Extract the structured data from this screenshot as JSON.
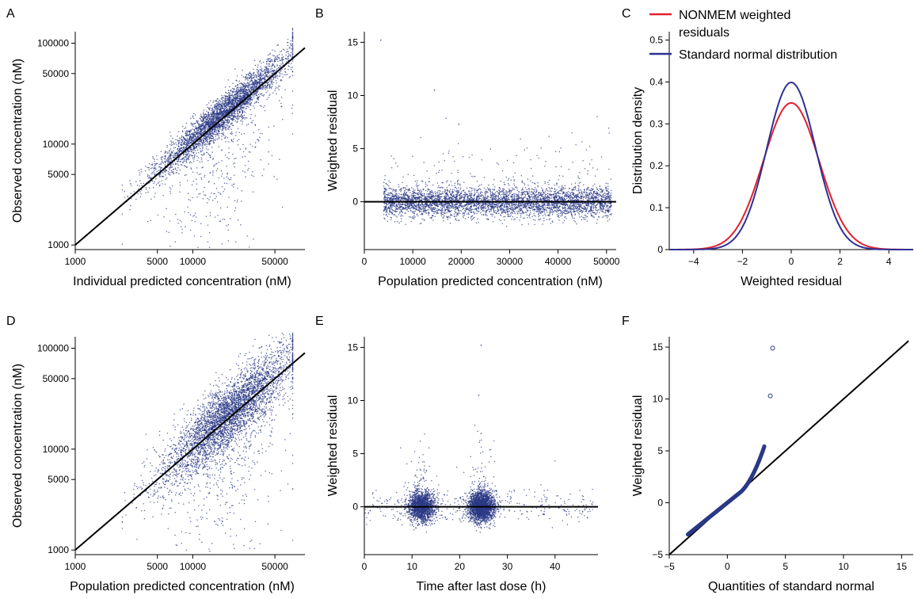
{
  "colors": {
    "points": "#2b3a86",
    "nonmem": "#e0202e",
    "normal": "#2e3192",
    "ref_line": "#000000"
  },
  "chart_data": [
    {
      "panel": "A",
      "type": "scatter",
      "xscale": "log",
      "yscale": "log",
      "xlabel": "Individual predicted concentration (nM)",
      "ylabel": "Observed concentration (nM)",
      "xlim": [
        1000,
        90000
      ],
      "ylim": [
        900,
        130000
      ],
      "xticks": [
        1000,
        5000,
        10000,
        50000
      ],
      "xtick_labels": [
        "1000",
        "5000",
        "10000",
        "50000"
      ],
      "yticks": [
        1000,
        5000,
        10000,
        50000,
        100000
      ],
      "ytick_labels": [
        "1000",
        "5000",
        "10000",
        "50000",
        "100000"
      ],
      "reference_line": "identity",
      "point_cloud": {
        "approx_points": 4000,
        "x_center": 20000,
        "x_range": [
          2500,
          65000
        ],
        "y_range": [
          1000,
          120000
        ]
      }
    },
    {
      "panel": "B",
      "type": "scatter",
      "xlabel": "Population predicted concentration (nM)",
      "ylabel": "Weighted residual",
      "xlim": [
        0,
        52000
      ],
      "ylim": [
        -4.5,
        16
      ],
      "xticks": [
        0,
        10000,
        20000,
        30000,
        40000,
        50000
      ],
      "xtick_labels": [
        "0",
        "10000",
        "20000",
        "30000",
        "40000",
        "50000"
      ],
      "yticks": [
        0,
        5,
        10,
        15
      ],
      "ytick_labels": [
        "0",
        "5",
        "10",
        "15"
      ],
      "reference_line": "y=0",
      "point_cloud": {
        "approx_points": 4500,
        "x_range": [
          3000,
          51000
        ],
        "y_center": 0,
        "y_range": [
          -2.5,
          15.3
        ]
      }
    },
    {
      "panel": "C",
      "type": "line",
      "xlabel": "Weighted residual",
      "ylabel": "Distribution density",
      "xlim": [
        -5,
        5
      ],
      "ylim": [
        0,
        0.52
      ],
      "xticks": [
        -4,
        -2,
        0,
        2,
        4
      ],
      "xtick_labels": [
        "−4",
        "−2",
        "0",
        "2",
        "4"
      ],
      "yticks": [
        0,
        0.1,
        0.2,
        0.3,
        0.4,
        0.5
      ],
      "ytick_labels": [
        "0",
        "0.1",
        "0.2",
        "0.3",
        "0.4",
        "0.5"
      ],
      "legend_position": "top-right",
      "series": [
        {
          "name": "NONMEM weighted residuals",
          "peak_density": 0.35,
          "sd": 1.14
        },
        {
          "name": "Standard normal distribution",
          "peak_density": 0.399,
          "sd": 1.0
        }
      ]
    },
    {
      "panel": "D",
      "type": "scatter",
      "xscale": "log",
      "yscale": "log",
      "xlabel": "Population predicted concentration (nM)",
      "ylabel": "Observed concentration (nM)",
      "xlim": [
        1000,
        90000
      ],
      "ylim": [
        900,
        130000
      ],
      "xticks": [
        1000,
        5000,
        10000,
        50000
      ],
      "xtick_labels": [
        "1000",
        "5000",
        "10000",
        "50000"
      ],
      "yticks": [
        1000,
        5000,
        10000,
        50000,
        100000
      ],
      "ytick_labels": [
        "1000",
        "5000",
        "10000",
        "50000",
        "100000"
      ],
      "reference_line": "identity",
      "point_cloud": {
        "approx_points": 4500,
        "x_range": [
          2500,
          52000
        ],
        "y_range": [
          1000,
          120000
        ]
      }
    },
    {
      "panel": "E",
      "type": "scatter",
      "xlabel": "Time after last dose (h)",
      "ylabel": "Weighted residual",
      "xlim": [
        0,
        49
      ],
      "ylim": [
        -4.5,
        16
      ],
      "xticks": [
        0,
        10,
        20,
        30,
        40
      ],
      "xtick_labels": [
        "0",
        "10",
        "20",
        "30",
        "40"
      ],
      "yticks": [
        0,
        5,
        10,
        15
      ],
      "ytick_labels": [
        "0",
        "5",
        "10",
        "15"
      ],
      "reference_line": "y=0",
      "point_cloud": {
        "approx_points": 4500,
        "clusters_at_h": [
          12,
          24
        ],
        "y_range": [
          -2.5,
          15.3
        ]
      }
    },
    {
      "panel": "F",
      "type": "scatter",
      "xlabel": "Quantities of standard normal",
      "ylabel": "Weighted residual",
      "xlim": [
        -5,
        16
      ],
      "ylim": [
        -5,
        16
      ],
      "xticks": [
        -5,
        0,
        5,
        10,
        15
      ],
      "xtick_labels": [
        "−5",
        "0",
        "5",
        "10",
        "15"
      ],
      "yticks": [
        -5,
        0,
        5,
        10,
        15
      ],
      "ytick_labels": [
        "−5",
        "0",
        "5",
        "10",
        "15"
      ],
      "reference_line": "identity",
      "outlier_points": [
        {
          "x": 3.7,
          "y": 10.3
        },
        {
          "x": 3.9,
          "y": 14.9
        }
      ]
    }
  ],
  "panel_letters": [
    "A",
    "B",
    "C",
    "D",
    "E",
    "F"
  ]
}
